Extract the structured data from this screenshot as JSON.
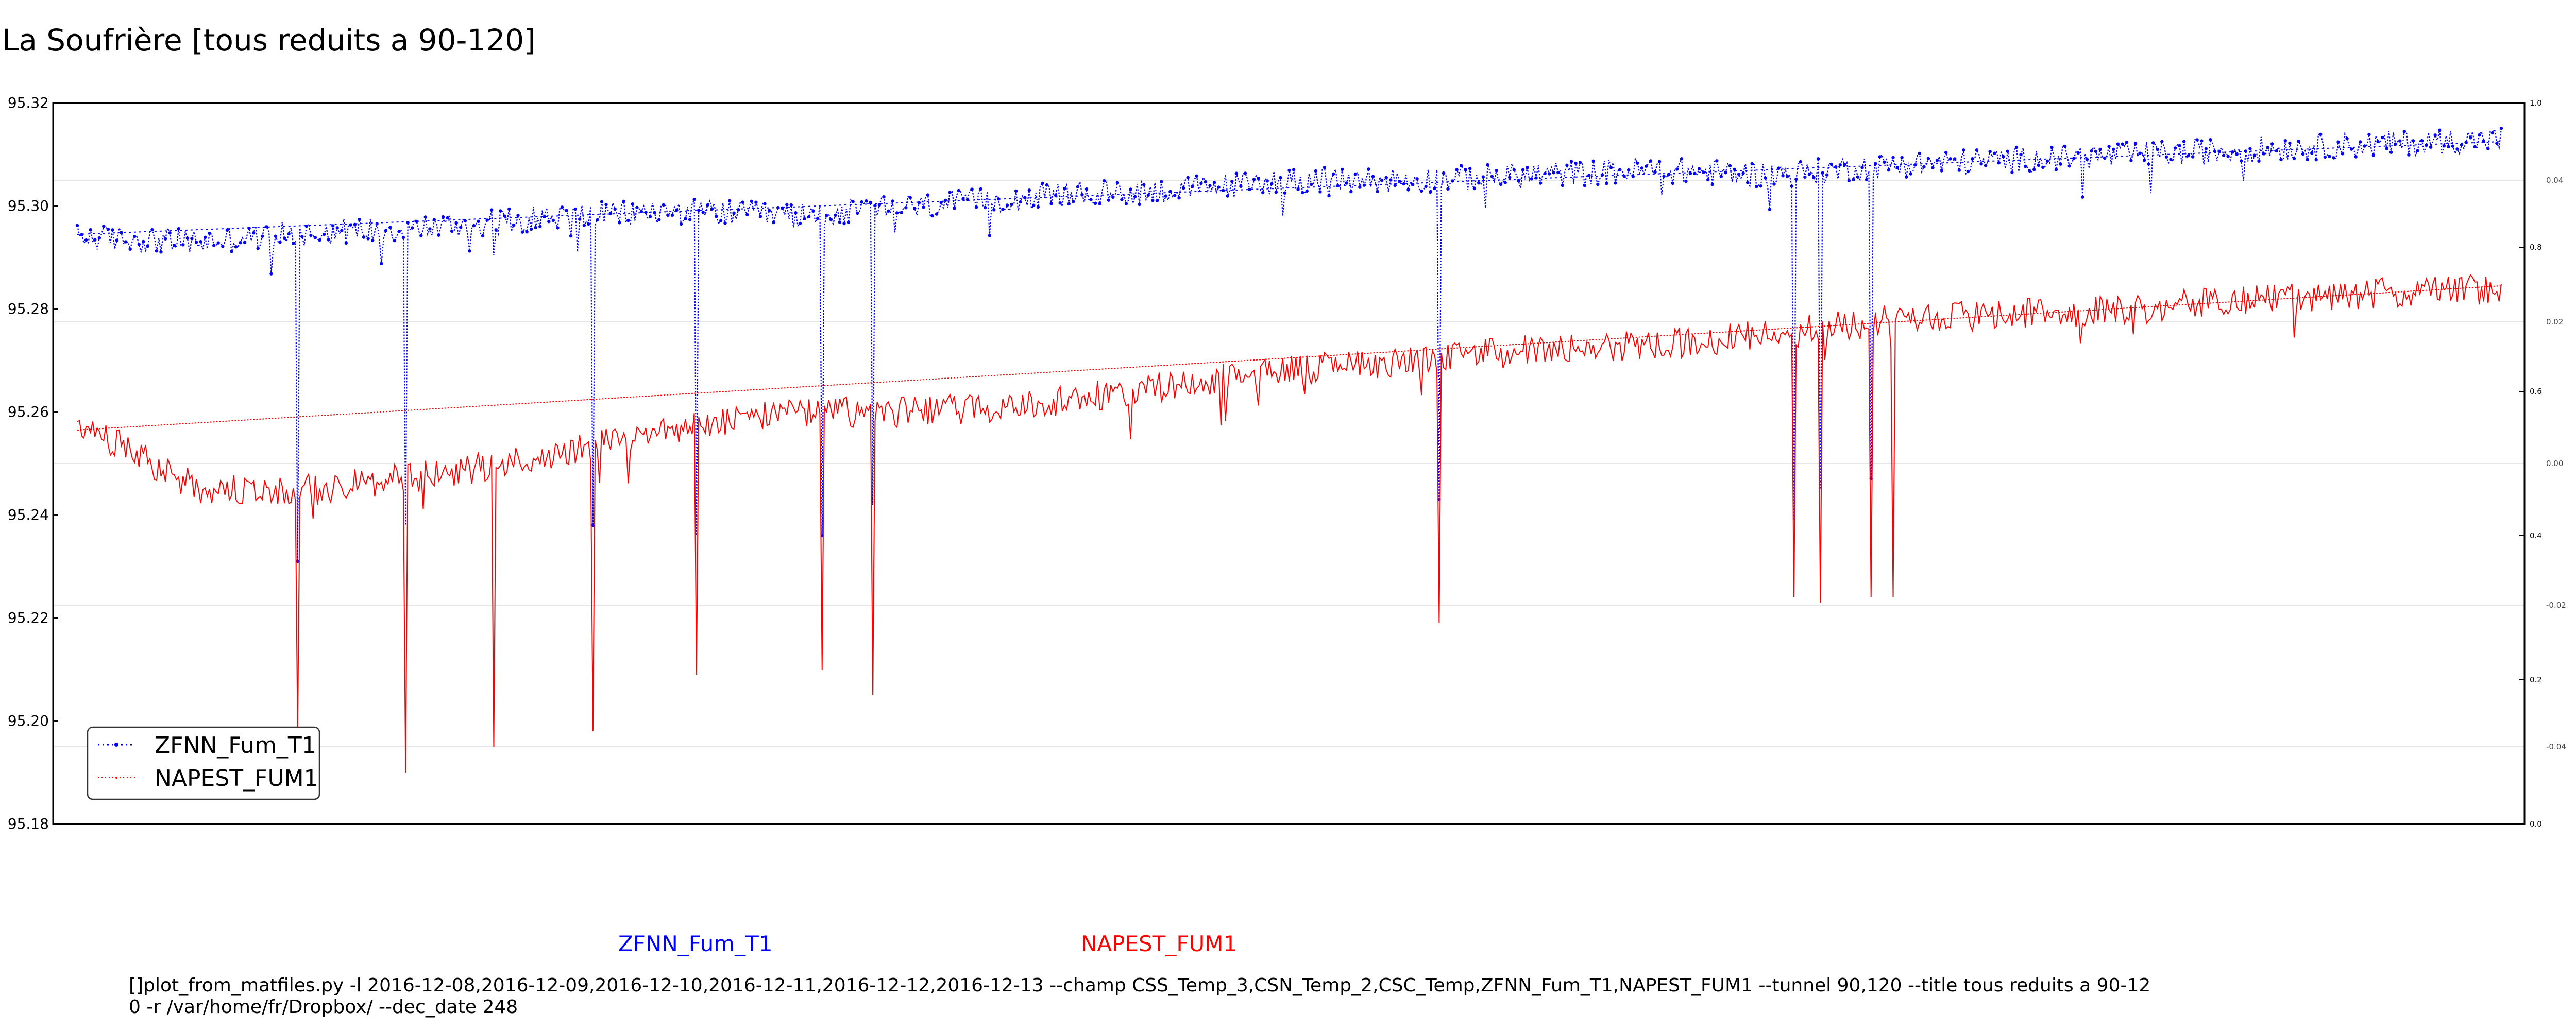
{
  "page": {
    "title": "La Soufrière [tous reduits a 90-120]",
    "bottom_labels": [
      {
        "text": "ZFNN_Fum_T1",
        "color": "#0000ff"
      },
      {
        "text": "NAPEST_FUM1",
        "color": "#ff0000"
      }
    ],
    "command_lines": [
      "[]plot_from_matfiles.py -l 2016-12-08,2016-12-09,2016-12-10,2016-12-11,2016-12-12,2016-12-13 --champ CSS_Temp_3,CSN_Temp_2,CSC_Temp,ZFNN_Fum_T1,NAPEST_FUM1 --tunnel 90,120 --title tous reduits a 90-12",
      "0 -r /var/home/fr/Dropbox/ --dec_date 248"
    ]
  },
  "chart_data": {
    "type": "line",
    "title": "La Soufrière [tous reduits a 90-120]",
    "xlabel": "",
    "ylabel": "",
    "ylim": [
      95.18,
      95.32
    ],
    "yticks": [
      "95.18",
      "95.20",
      "95.22",
      "95.24",
      "95.26",
      "95.28",
      "95.30",
      "95.32"
    ],
    "right_ticks": [
      "0.0",
      "0.2",
      "0.4",
      "0.6",
      "0.8",
      "1.0"
    ],
    "right_grid_ticks": [
      "-0.04",
      "-0.02",
      "0.00",
      "0.02",
      "0.04"
    ],
    "xlim": [
      0,
      1
    ],
    "grid": "horizontal, right axis",
    "legend": {
      "placement": "lower-left",
      "entries": [
        "ZFNN_Fum_T1",
        "NAPEST_FUM1"
      ]
    },
    "series": [
      {
        "name": "ZFNN_Fum_T1",
        "color": "#0000ff",
        "style": "dotted line with dot markers",
        "trend": [
          95.2945,
          95.3125
        ],
        "noise_amplitude": 0.0025,
        "values_x": [
          0.0,
          0.05,
          0.1,
          0.15,
          0.2,
          0.25,
          0.3,
          0.35,
          0.4,
          0.45,
          0.5,
          0.55,
          0.6,
          0.65,
          0.7,
          0.75,
          0.8,
          0.85,
          0.9,
          0.95,
          1.0
        ],
        "values_y": [
          95.294,
          95.293,
          95.295,
          95.296,
          95.298,
          95.299,
          95.298,
          95.3,
          95.302,
          95.303,
          95.305,
          95.305,
          95.306,
          95.307,
          95.306,
          95.308,
          95.309,
          95.31,
          95.311,
          95.312,
          95.313
        ],
        "dips": [
          {
            "x": 0.091,
            "y": 95.231
          },
          {
            "x": 0.135,
            "y": 95.238
          },
          {
            "x": 0.213,
            "y": 95.238
          },
          {
            "x": 0.255,
            "y": 95.236
          },
          {
            "x": 0.307,
            "y": 95.236
          },
          {
            "x": 0.328,
            "y": 95.242
          },
          {
            "x": 0.562,
            "y": 95.243
          },
          {
            "x": 0.708,
            "y": 95.239
          },
          {
            "x": 0.719,
            "y": 95.245
          },
          {
            "x": 0.74,
            "y": 95.247
          }
        ]
      },
      {
        "name": "NAPEST_FUM1",
        "color": "#ff0000",
        "style": "solid line",
        "trend": [
          95.2565,
          95.2845
        ],
        "noise_amplitude": 0.003,
        "values_x": [
          0.0,
          0.05,
          0.1,
          0.15,
          0.2,
          0.25,
          0.3,
          0.35,
          0.4,
          0.45,
          0.5,
          0.55,
          0.6,
          0.65,
          0.7,
          0.75,
          0.8,
          0.85,
          0.9,
          0.95,
          1.0
        ],
        "values_y": [
          95.258,
          95.245,
          95.245,
          95.248,
          95.252,
          95.257,
          95.26,
          95.26,
          95.262,
          95.265,
          95.268,
          95.27,
          95.272,
          95.273,
          95.275,
          95.278,
          95.279,
          95.28,
          95.282,
          95.283,
          95.284
        ],
        "dips": [
          {
            "x": 0.091,
            "y": 95.198
          },
          {
            "x": 0.135,
            "y": 95.19
          },
          {
            "x": 0.172,
            "y": 95.195
          },
          {
            "x": 0.213,
            "y": 95.198
          },
          {
            "x": 0.255,
            "y": 95.209
          },
          {
            "x": 0.307,
            "y": 95.21
          },
          {
            "x": 0.328,
            "y": 95.205
          },
          {
            "x": 0.562,
            "y": 95.219
          },
          {
            "x": 0.708,
            "y": 95.224
          },
          {
            "x": 0.719,
            "y": 95.223
          },
          {
            "x": 0.74,
            "y": 95.224
          },
          {
            "x": 0.749,
            "y": 95.224
          }
        ]
      }
    ]
  }
}
